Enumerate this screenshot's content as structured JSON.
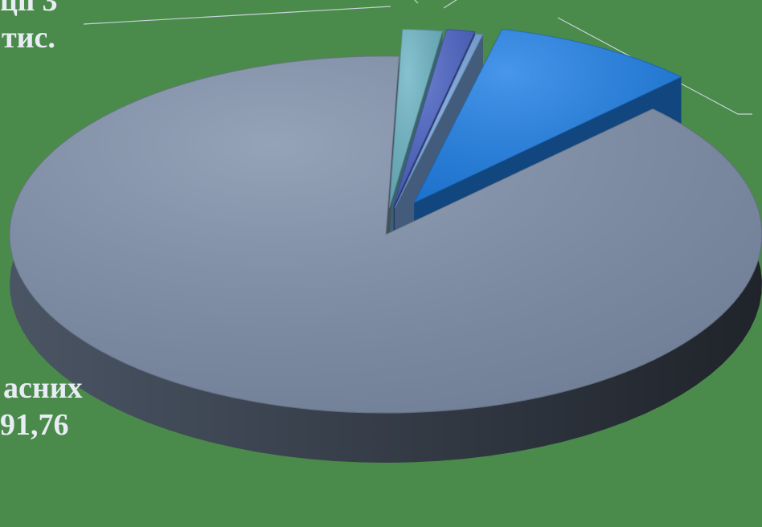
{
  "chart_data": {
    "type": "pie",
    "style": "3d-exploded",
    "title": "",
    "slices": [
      {
        "label_lines": [],
        "value": 1.7,
        "color": "#6cb4c4"
      },
      {
        "label_lines": [],
        "value": 1.2,
        "color": "#4a62c4"
      },
      {
        "label_lines": [],
        "value": 0.3,
        "color": "#7aa8e0"
      },
      {
        "label_lines": [],
        "value": 8.8,
        "color": "#1e7fe6"
      },
      {
        "label_lines": [
          "асних",
          "91,76"
        ],
        "value": 88.0,
        "color": "#7e8faa"
      }
    ],
    "visible_label_fragments": [
      {
        "lines": [
          "ції 3",
          "тис."
        ]
      },
      {
        "lines": [
          "асних",
          "91,76"
        ]
      }
    ]
  }
}
